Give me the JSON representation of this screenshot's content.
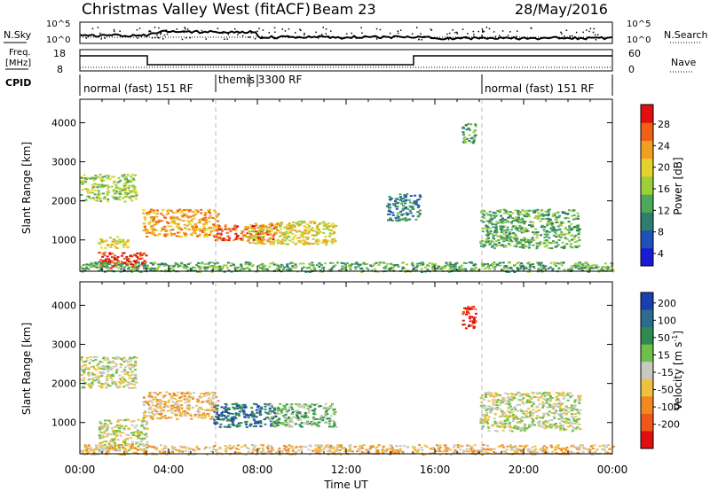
{
  "header": {
    "station": "Christmas Valley West (fitACF)",
    "beam": "Beam 23",
    "date": "28/May/2016"
  },
  "summary_panel": {
    "nsky_label": "N.Sky",
    "nsearch_label": "N.Search",
    "freq_label_1": "Freq.",
    "freq_label_2": "[MHz]",
    "nave_label": "Nave",
    "cpid_label": "CPID",
    "freq_ticks": [
      "18",
      "8"
    ],
    "nave_ticks": [
      "60",
      "0"
    ],
    "noise_ticks_left": [
      "10^5",
      "10^0"
    ],
    "noise_ticks_right": [
      "10^5",
      "10^0"
    ],
    "cpid_segments": [
      "normal (fast) 151 RF",
      "themis 3300 RF",
      "normal (fast) 151 RF"
    ]
  },
  "colorbars": {
    "power": {
      "label": "Power [dB]",
      "ticks": [
        "28",
        "24",
        "20",
        "16",
        "12",
        "8",
        "4"
      ],
      "colors": [
        "#1a1ad6",
        "#1f52b8",
        "#2e7d6e",
        "#4fa85a",
        "#9ccf3a",
        "#e6d22c",
        "#f0a020",
        "#f06018",
        "#e01010"
      ]
    },
    "velocity": {
      "label": "Velocity [m s",
      "label_exp": "-1",
      "label_end": "]",
      "ticks": [
        "200",
        "100",
        "50",
        "15",
        "-15",
        "-50",
        "-100",
        "-200"
      ],
      "colors": [
        "#1a3fb0",
        "#2e6c8e",
        "#2f8a4f",
        "#6fc04a",
        "#c8c8c0",
        "#f0c040",
        "#f08a20",
        "#f05818",
        "#e01010"
      ]
    }
  },
  "chart_data": [
    {
      "type": "heatmap",
      "name": "power",
      "ylabel": "Slant Range [km]",
      "y_ticks": [
        "4000",
        "3000",
        "2000",
        "1000"
      ],
      "ylim": [
        200,
        4600
      ],
      "xlim": [
        0,
        24
      ],
      "scatter_regions": [
        {
          "x": [
            0.0,
            2.5
          ],
          "y": [
            2000,
            2700
          ],
          "level": 4
        },
        {
          "x": [
            0.8,
            3.0
          ],
          "y": [
            300,
            700
          ],
          "level": 8
        },
        {
          "x": [
            0.8,
            2.2
          ],
          "y": [
            800,
            1100
          ],
          "level": 5
        },
        {
          "x": [
            2.8,
            6.2
          ],
          "y": [
            1100,
            1800
          ],
          "level": 6
        },
        {
          "x": [
            6.0,
            8.8
          ],
          "y": [
            1000,
            1400
          ],
          "level": 7
        },
        {
          "x": [
            7.5,
            11.5
          ],
          "y": [
            900,
            1500
          ],
          "level": 5
        },
        {
          "x": [
            0.0,
            24.0
          ],
          "y": [
            200,
            450
          ],
          "level": 3
        },
        {
          "x": [
            13.8,
            15.3
          ],
          "y": [
            1500,
            2200
          ],
          "level": 2
        },
        {
          "x": [
            17.2,
            17.8
          ],
          "y": [
            3500,
            4000
          ],
          "level": 3
        },
        {
          "x": [
            18.0,
            22.5
          ],
          "y": [
            800,
            1800
          ],
          "level": 3
        }
      ]
    },
    {
      "type": "heatmap",
      "name": "velocity",
      "ylabel": "Slant Range [km]",
      "xlabel": "Time UT",
      "y_ticks": [
        "4000",
        "3000",
        "2000",
        "1000"
      ],
      "x_ticks": [
        "00:00",
        "04:00",
        "08:00",
        "12:00",
        "16:00",
        "20:00",
        "00:00"
      ],
      "ylim": [
        200,
        4600
      ],
      "xlim": [
        0,
        24
      ],
      "scatter_regions": [
        {
          "x": [
            0.0,
            2.5
          ],
          "y": [
            1900,
            2700
          ],
          "level": 4
        },
        {
          "x": [
            0.8,
            3.0
          ],
          "y": [
            300,
            1100
          ],
          "level": 4
        },
        {
          "x": [
            2.8,
            6.2
          ],
          "y": [
            1100,
            1800
          ],
          "level": 5
        },
        {
          "x": [
            6.0,
            8.8
          ],
          "y": [
            900,
            1500
          ],
          "level": 1
        },
        {
          "x": [
            8.5,
            11.5
          ],
          "y": [
            900,
            1500
          ],
          "level": 3
        },
        {
          "x": [
            0.0,
            24.0
          ],
          "y": [
            200,
            450
          ],
          "level": 5
        },
        {
          "x": [
            17.2,
            17.8
          ],
          "y": [
            3400,
            4000
          ],
          "level": 8
        },
        {
          "x": [
            18.0,
            22.5
          ],
          "y": [
            800,
            1800
          ],
          "level": 4
        }
      ]
    }
  ]
}
